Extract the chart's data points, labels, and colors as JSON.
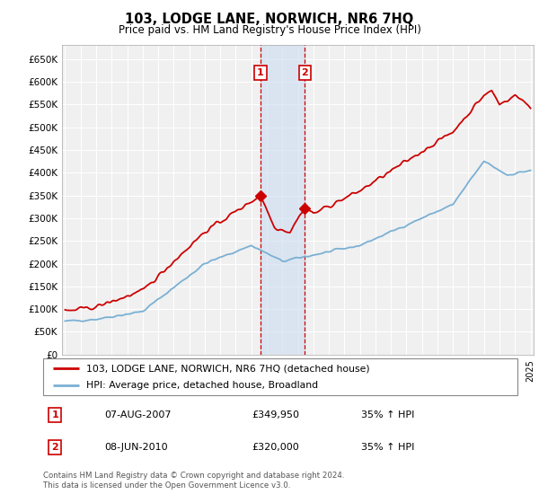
{
  "title": "103, LODGE LANE, NORWICH, NR6 7HQ",
  "subtitle": "Price paid vs. HM Land Registry's House Price Index (HPI)",
  "legend_line1": "103, LODGE LANE, NORWICH, NR6 7HQ (detached house)",
  "legend_line2": "HPI: Average price, detached house, Broadland",
  "transaction1_date": "07-AUG-2007",
  "transaction1_price": 349950,
  "transaction1_hpi": "35% ↑ HPI",
  "transaction2_date": "08-JUN-2010",
  "transaction2_price": 320000,
  "transaction2_hpi": "35% ↑ HPI",
  "footer": "Contains HM Land Registry data © Crown copyright and database right 2024.\nThis data is licensed under the Open Government Licence v3.0.",
  "red_color": "#cc0000",
  "blue_color": "#7ab0d4",
  "background_color": "#ffffff",
  "chart_bg": "#f0f0f0",
  "grid_color": "#ffffff",
  "ylim_min": 0,
  "ylim_max": 680000,
  "ytick_step": 50000,
  "x_start_year": 1995,
  "x_end_year": 2025,
  "transaction1_year": 2007.6,
  "transaction2_year": 2010.45,
  "highlight_shade": "#ccddf0"
}
